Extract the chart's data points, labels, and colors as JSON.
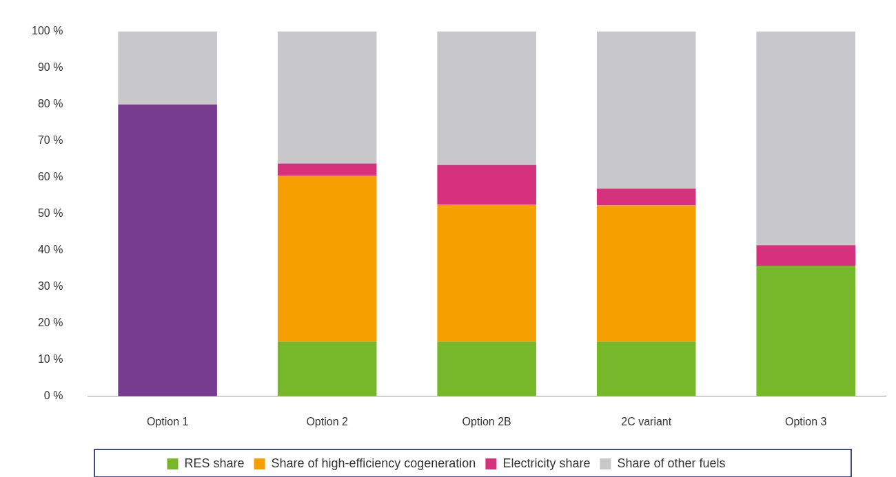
{
  "chart_data": {
    "type": "bar",
    "stacked": true,
    "categories": [
      "Option 1",
      "Option 2",
      "Option 2B",
      "2C variant",
      "Option 3"
    ],
    "series": [
      {
        "color": "#773b8f",
        "values": [
          80,
          null,
          null,
          null,
          null
        ]
      },
      {
        "name": "RES share",
        "color": "#76b82a",
        "values": [
          null,
          15,
          15,
          15,
          35.8
        ]
      },
      {
        "name": "Share of high-efficiency cogeneration",
        "color": "#f5a000",
        "values": [
          null,
          45.4,
          37.5,
          37.3,
          null
        ]
      },
      {
        "name": "Electricity share",
        "color": "#d6317d",
        "values": [
          null,
          3.4,
          10.9,
          4.6,
          5.6
        ]
      },
      {
        "name": "Share of other fuels",
        "color": "#c8c8ca",
        "values": [
          20,
          36.2,
          36.6,
          43.1,
          58.6
        ]
      }
    ],
    "ylim": [
      0,
      100
    ],
    "yticks": [
      {
        "value": 0,
        "label": "0 %"
      },
      {
        "value": 10,
        "label": "10 %"
      },
      {
        "value": 20,
        "label": "20 %"
      },
      {
        "value": 30,
        "label": "30 %"
      },
      {
        "value": 40,
        "label": "40 %"
      },
      {
        "value": 50,
        "label": "50 %"
      },
      {
        "value": 60,
        "label": "60 %"
      },
      {
        "value": 70,
        "label": "70 %"
      },
      {
        "value": 80,
        "label": "80 %"
      },
      {
        "value": 90,
        "label": "90 %"
      },
      {
        "value": 100,
        "label": "100 %"
      }
    ],
    "grid": false,
    "legend": "bottom"
  }
}
